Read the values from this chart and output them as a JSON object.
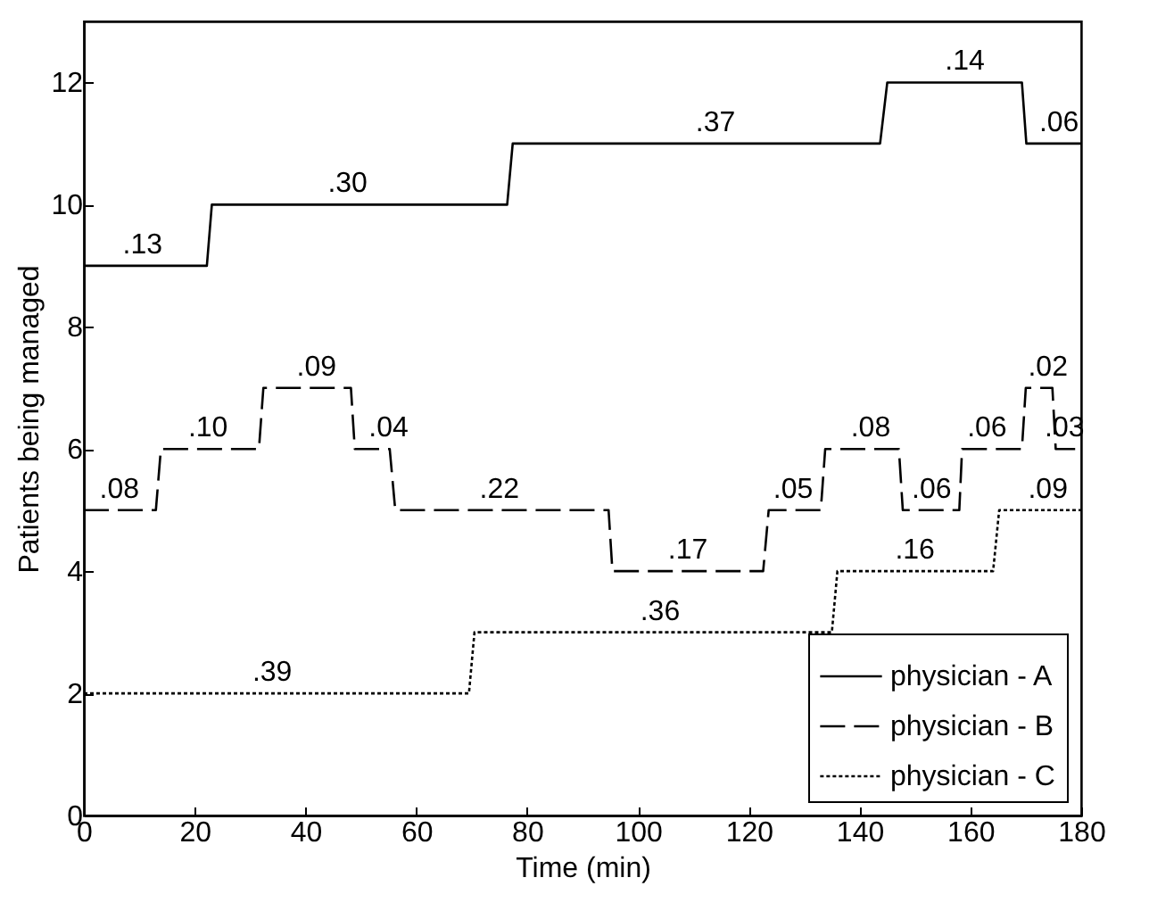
{
  "chart_data": {
    "type": "line",
    "xlabel": "Time (min)",
    "ylabel": "Patients being managed",
    "xlim": [
      0,
      180
    ],
    "ylim": [
      0,
      13
    ],
    "xticks": [
      0,
      20,
      40,
      60,
      80,
      100,
      120,
      140,
      160,
      180
    ],
    "yticks": [
      0,
      2,
      4,
      6,
      8,
      10,
      12
    ],
    "grid": false,
    "legend": "bottom right",
    "marker": "none",
    "series": [
      {
        "name": "physician - A",
        "color": "#000000",
        "line_style": "solid",
        "x": [
          0,
          22.2,
          23.1,
          76.4,
          77.4,
          143.7,
          145,
          169.3,
          170.1,
          180
        ],
        "values": [
          9,
          9,
          10,
          10,
          11,
          11,
          12,
          12,
          11,
          11
        ]
      },
      {
        "name": "physician - B",
        "color": "#000000",
        "line_style": "dashed",
        "x": [
          0,
          13,
          13.9,
          31.6,
          32.4,
          48.2,
          48.9,
          55.2,
          56.2,
          94.7,
          95.4,
          122.6,
          123.6,
          133,
          133.8,
          147.1,
          147.8,
          158,
          158.5,
          169.3,
          170,
          174.8,
          175.4,
          180
        ],
        "values": [
          5,
          5,
          6,
          6,
          7,
          7,
          6,
          6,
          5,
          5,
          4,
          4,
          5,
          5,
          6,
          6,
          5,
          5,
          6,
          6,
          7,
          7,
          6,
          6
        ]
      },
      {
        "name": "physician - C",
        "color": "#000000",
        "line_style": "dotted",
        "x": [
          0,
          69.5,
          70.5,
          135,
          136,
          164.1,
          165.2,
          180
        ],
        "values": [
          2,
          2,
          3,
          3,
          4,
          4,
          5,
          5
        ]
      }
    ],
    "annotations": [
      {
        "text": ".13",
        "x": 10.6,
        "y": 9
      },
      {
        "text": ".30",
        "x": 47.6,
        "y": 10
      },
      {
        "text": ".37",
        "x": 114,
        "y": 11
      },
      {
        "text": ".14",
        "x": 159,
        "y": 12
      },
      {
        "text": ".06",
        "x": 176,
        "y": 11
      },
      {
        "text": ".08",
        "x": 6.4,
        "y": 5
      },
      {
        "text": ".10",
        "x": 22.4,
        "y": 6
      },
      {
        "text": ".09",
        "x": 42,
        "y": 7
      },
      {
        "text": ".04",
        "x": 55,
        "y": 6
      },
      {
        "text": ".22",
        "x": 75,
        "y": 5
      },
      {
        "text": ".17",
        "x": 109,
        "y": 4
      },
      {
        "text": ".05",
        "x": 128,
        "y": 5
      },
      {
        "text": ".08",
        "x": 142,
        "y": 6
      },
      {
        "text": ".06",
        "x": 153,
        "y": 5
      },
      {
        "text": ".06",
        "x": 163,
        "y": 6
      },
      {
        "text": ".02",
        "x": 174,
        "y": 7
      },
      {
        "text": ".03",
        "x": 177,
        "y": 6
      },
      {
        "text": ".39",
        "x": 34,
        "y": 2
      },
      {
        "text": ".36",
        "x": 104,
        "y": 3
      },
      {
        "text": ".16",
        "x": 150,
        "y": 4
      },
      {
        "text": ".09",
        "x": 174,
        "y": 5
      }
    ]
  }
}
